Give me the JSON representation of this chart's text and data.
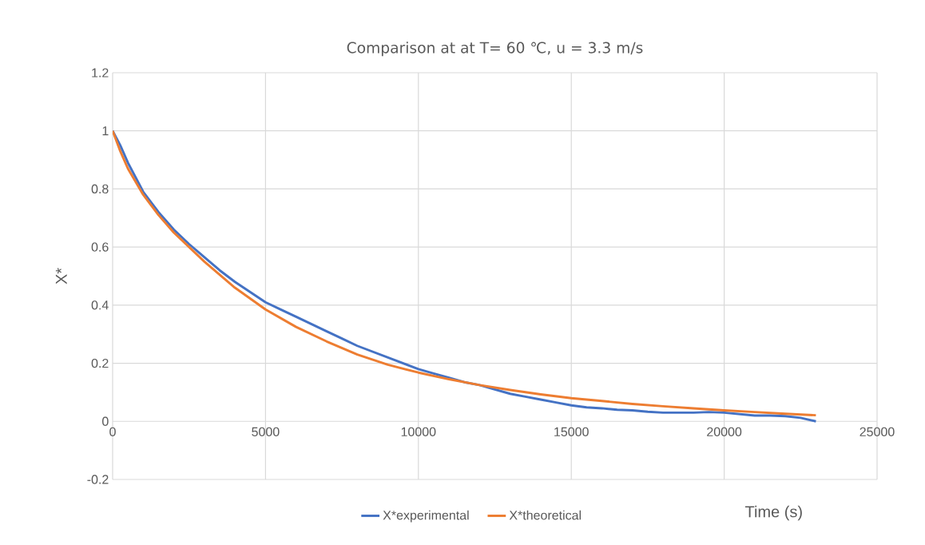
{
  "chart_data": {
    "type": "line",
    "title": "Comparison at at T= 60 ℃, u = 3.3 m/s",
    "xlabel": "Time (s)",
    "ylabel": "X*",
    "xlim": [
      0,
      25000
    ],
    "xticks": [
      0,
      5000,
      10000,
      15000,
      20000,
      25000
    ],
    "ylim": [
      -0.2,
      1.2
    ],
    "yticks": [
      -0.2,
      0,
      0.2,
      0.4,
      0.6,
      0.8,
      1,
      1.2
    ],
    "grid": true,
    "legend": "bottom",
    "marker": "none",
    "line_style": "solid",
    "series": [
      {
        "name": "X*experimental",
        "color": "#4472c4",
        "x": [
          0,
          250,
          500,
          1000,
          1500,
          2000,
          2500,
          3000,
          3500,
          4000,
          4500,
          5000,
          5500,
          6000,
          6500,
          7000,
          7500,
          8000,
          8500,
          9000,
          9500,
          10000,
          10500,
          11000,
          11500,
          12000,
          12500,
          13000,
          13500,
          14000,
          14500,
          15000,
          15500,
          16000,
          16500,
          17000,
          17500,
          18000,
          18500,
          19000,
          19500,
          20000,
          20500,
          21000,
          21500,
          22000,
          22500,
          23000
        ],
        "values": [
          1,
          0.95,
          0.89,
          0.79,
          0.72,
          0.66,
          0.61,
          0.565,
          0.52,
          0.48,
          0.445,
          0.41,
          0.385,
          0.36,
          0.335,
          0.31,
          0.285,
          0.26,
          0.24,
          0.22,
          0.2,
          0.18,
          0.165,
          0.15,
          0.135,
          0.125,
          0.11,
          0.095,
          0.085,
          0.075,
          0.065,
          0.055,
          0.048,
          0.045,
          0.04,
          0.038,
          0.033,
          0.03,
          0.03,
          0.03,
          0.032,
          0.03,
          0.025,
          0.02,
          0.02,
          0.018,
          0.012,
          0
        ]
      },
      {
        "name": "X*theoretical",
        "color": "#ed7d31",
        "x": [
          0,
          250,
          500,
          1000,
          1500,
          2000,
          2500,
          3000,
          4000,
          5000,
          6000,
          7000,
          8000,
          9000,
          10000,
          11000,
          12000,
          13000,
          14000,
          15000,
          16000,
          17000,
          18000,
          19000,
          20000,
          21000,
          22000,
          23000
        ],
        "values": [
          1,
          0.93,
          0.87,
          0.78,
          0.71,
          0.65,
          0.6,
          0.55,
          0.46,
          0.385,
          0.325,
          0.275,
          0.23,
          0.195,
          0.168,
          0.145,
          0.125,
          0.108,
          0.093,
          0.08,
          0.07,
          0.06,
          0.052,
          0.045,
          0.038,
          0.032,
          0.026,
          0.021
        ]
      }
    ]
  }
}
